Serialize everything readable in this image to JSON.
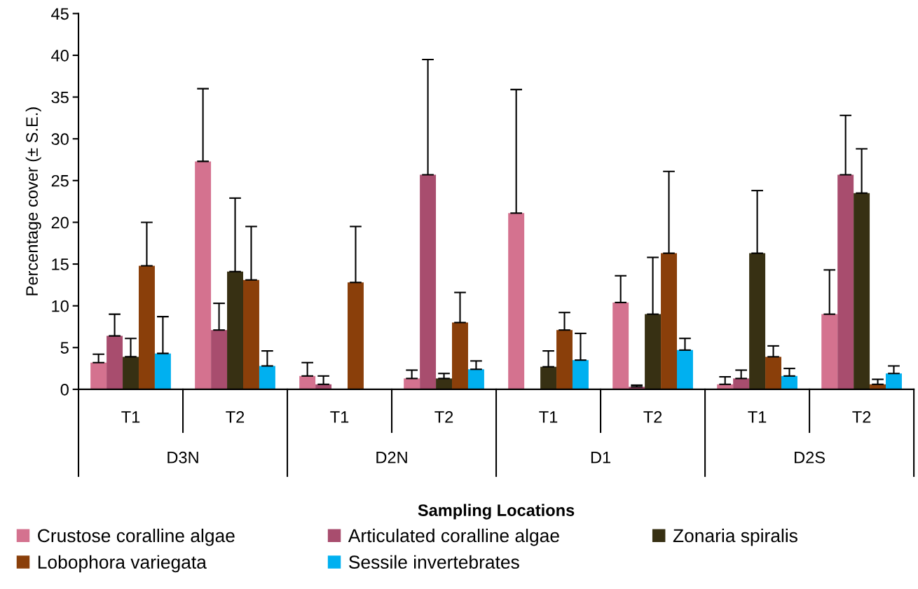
{
  "chart_data": {
    "type": "bar",
    "xlabel": "Sampling Locations",
    "ylabel": "Percentage cover (± S.E.)",
    "categories": [
      "T1",
      "T2",
      "T1",
      "T2",
      "T1",
      "T2",
      "T1",
      "T2"
    ],
    "annotations": [
      "D3N",
      "D2N",
      "D1",
      "D2S"
    ],
    "ylim": [
      0,
      45
    ],
    "yticks": [
      0,
      5,
      10,
      15,
      20,
      25,
      30,
      35,
      40,
      45
    ],
    "grid": false,
    "legend": "bottom",
    "series": [
      {
        "name": "Crustose coralline algae",
        "color": "#d4728f",
        "values": [
          3.2,
          27.3,
          1.6,
          1.3,
          21.1,
          10.4,
          0.6,
          9.0
        ],
        "errors": [
          [
            3.2,
            4.2
          ],
          [
            27.3,
            36.0
          ],
          [
            1.6,
            3.2
          ],
          [
            1.3,
            2.3
          ],
          [
            21.1,
            35.9
          ],
          [
            10.4,
            13.6
          ],
          [
            0.6,
            1.5
          ],
          [
            9.0,
            14.3
          ]
        ]
      },
      {
        "name": "Articulated coralline algae",
        "color": "#a84d6e",
        "values": [
          6.4,
          7.1,
          0.6,
          25.7,
          0,
          0.3,
          1.3,
          25.7
        ],
        "errors": [
          [
            6.4,
            9.0
          ],
          [
            7.1,
            10.3
          ],
          [
            0.6,
            1.6
          ],
          [
            25.7,
            39.5
          ],
          null,
          [
            0.3,
            0.5
          ],
          [
            1.3,
            2.3
          ],
          [
            25.7,
            32.8
          ]
        ]
      },
      {
        "name": "Zonaria spiralis",
        "color": "#373013",
        "values": [
          3.9,
          14.1,
          0,
          1.3,
          2.7,
          9.0,
          16.3,
          23.5
        ],
        "errors": [
          [
            3.9,
            6.1
          ],
          [
            14.1,
            22.9
          ],
          null,
          [
            1.3,
            1.9
          ],
          [
            2.7,
            4.6
          ],
          [
            9.0,
            15.8
          ],
          [
            16.3,
            23.8
          ],
          [
            23.5,
            28.8
          ]
        ]
      },
      {
        "name": "Lobophora variegata",
        "color": "#8a3f0a",
        "values": [
          14.8,
          13.1,
          12.8,
          8.0,
          7.1,
          16.3,
          3.9,
          0.6
        ],
        "errors": [
          [
            14.8,
            20.0
          ],
          [
            13.1,
            19.5
          ],
          [
            12.8,
            19.5
          ],
          [
            8.0,
            11.6
          ],
          [
            7.1,
            9.2
          ],
          [
            16.3,
            26.1
          ],
          [
            3.9,
            5.2
          ],
          [
            0.6,
            1.2
          ]
        ]
      },
      {
        "name": "Sessile invertebrates",
        "color": "#00b0f0",
        "values": [
          4.3,
          2.8,
          0,
          2.4,
          3.5,
          4.7,
          1.6,
          1.9
        ],
        "errors": [
          [
            4.3,
            8.7
          ],
          [
            2.8,
            4.6
          ],
          null,
          [
            2.4,
            3.4
          ],
          [
            3.5,
            6.7
          ],
          [
            4.7,
            6.1
          ],
          [
            1.6,
            2.5
          ],
          [
            1.9,
            2.8
          ]
        ]
      }
    ]
  }
}
